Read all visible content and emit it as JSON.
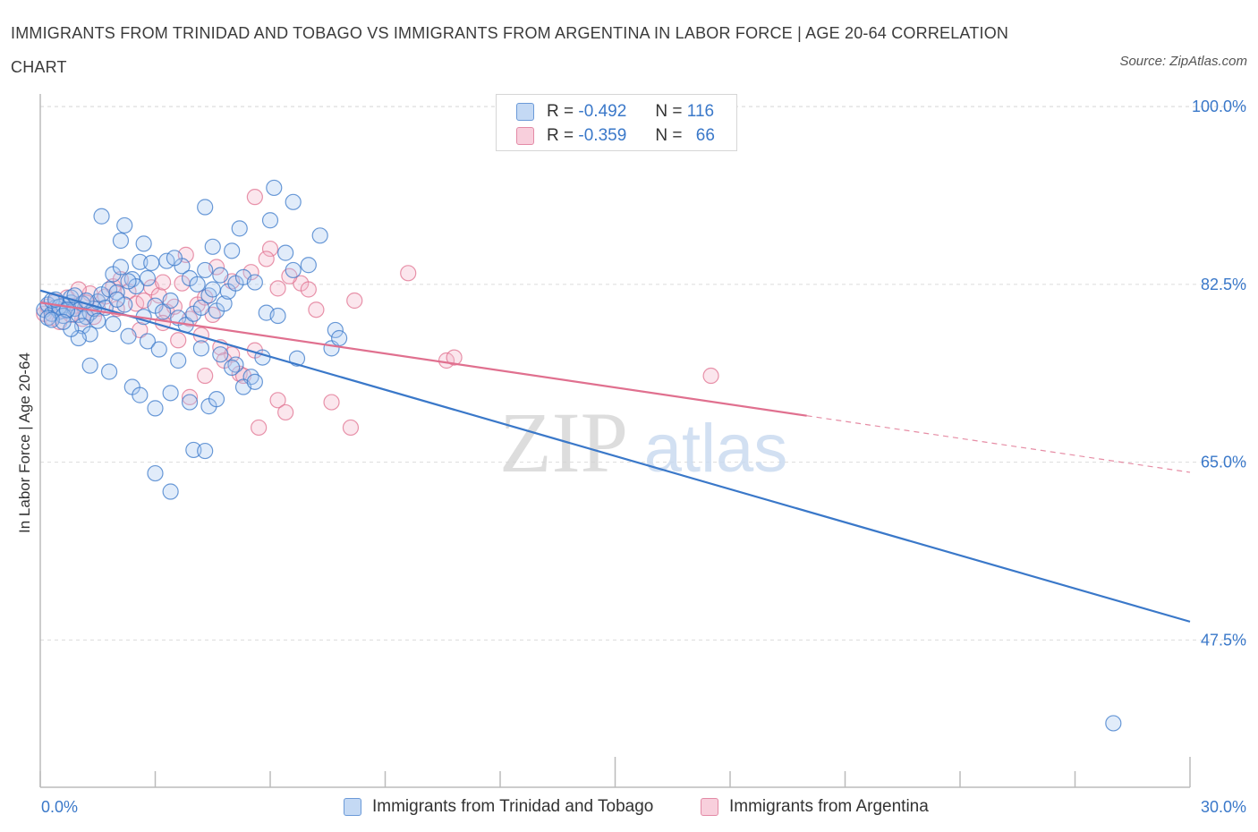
{
  "title": "IMMIGRANTS FROM TRINIDAD AND TOBAGO VS IMMIGRANTS FROM ARGENTINA IN LABOR FORCE | AGE 20-64 CORRELATION CHART",
  "source": "Source: ZipAtlas.com",
  "watermark": {
    "zip": "ZIP",
    "atlas": "atlas"
  },
  "colors": {
    "blue": "#3a78c9",
    "blue_fill": "#aac8f0",
    "pink": "#e0708f",
    "pink_fill": "#f4b8cb",
    "grid": "#d9d9d9",
    "axis_text": "#3a78c9"
  },
  "legend": {
    "rows": [
      {
        "r_label": "R =",
        "r_value": "-0.492",
        "n_label": "N =",
        "n_value": "116"
      },
      {
        "r_label": "R =",
        "r_value": "-0.359",
        "n_label": "N =",
        "n_value": "66"
      }
    ]
  },
  "chart_data": {
    "type": "scatter",
    "title": "IMMIGRANTS FROM TRINIDAD AND TOBAGO VS IMMIGRANTS FROM ARGENTINA IN LABOR FORCE | AGE 20-64 CORRELATION CHART",
    "xlabel": "",
    "ylabel": "In Labor Force | Age 20-64",
    "xlim": [
      0,
      30
    ],
    "ylim": [
      33,
      103
    ],
    "x_tick_labels": [
      "0.0%",
      "30.0%"
    ],
    "y_ticks": [
      100.0,
      82.5,
      65.0,
      47.5
    ],
    "y_tick_labels": [
      "100.0%",
      "82.5%",
      "65.0%",
      "47.5%"
    ],
    "grid": "horizontal dashed",
    "legend_position": "top-center",
    "series": [
      {
        "name": "Immigrants from Trinidad and Tobago",
        "color": "#3a78c9",
        "trend": {
          "x": [
            0,
            30
          ],
          "y": [
            81.9,
            49.3
          ],
          "dashed_from": null
        },
        "points": [
          [
            0.1,
            80.0
          ],
          [
            0.2,
            80.5
          ],
          [
            0.3,
            79.6
          ],
          [
            0.4,
            80.2
          ],
          [
            0.5,
            79.8
          ],
          [
            0.6,
            80.4
          ],
          [
            0.7,
            79.9
          ],
          [
            0.8,
            80.7
          ],
          [
            0.9,
            80.1
          ],
          [
            1.0,
            79.5
          ],
          [
            0.2,
            79.2
          ],
          [
            0.3,
            80.9
          ],
          [
            0.5,
            80.3
          ],
          [
            0.6,
            79.4
          ],
          [
            0.8,
            81.2
          ],
          [
            1.1,
            80.6
          ],
          [
            1.3,
            79.7
          ],
          [
            1.5,
            80.8
          ],
          [
            1.6,
            81.5
          ],
          [
            1.7,
            80.2
          ],
          [
            0.4,
            81.0
          ],
          [
            0.7,
            80.0
          ],
          [
            0.9,
            81.4
          ],
          [
            1.2,
            79.3
          ],
          [
            1.4,
            80.1
          ],
          [
            1.8,
            82.0
          ],
          [
            2.0,
            81.7
          ],
          [
            2.2,
            80.5
          ],
          [
            2.4,
            83.0
          ],
          [
            2.5,
            82.3
          ],
          [
            1.1,
            78.4
          ],
          [
            1.3,
            77.6
          ],
          [
            1.5,
            78.9
          ],
          [
            1.0,
            77.2
          ],
          [
            0.8,
            78.1
          ],
          [
            1.9,
            83.5
          ],
          [
            2.1,
            84.2
          ],
          [
            2.3,
            82.8
          ],
          [
            2.6,
            84.7
          ],
          [
            2.8,
            83.1
          ],
          [
            3.0,
            80.4
          ],
          [
            3.2,
            79.8
          ],
          [
            3.4,
            80.9
          ],
          [
            3.6,
            79.2
          ],
          [
            3.8,
            78.5
          ],
          [
            4.0,
            79.6
          ],
          [
            4.2,
            80.2
          ],
          [
            4.4,
            81.4
          ],
          [
            4.6,
            79.9
          ],
          [
            4.8,
            80.6
          ],
          [
            2.7,
            86.5
          ],
          [
            3.3,
            84.8
          ],
          [
            3.7,
            84.3
          ],
          [
            3.9,
            83.1
          ],
          [
            4.1,
            82.5
          ],
          [
            4.3,
            83.9
          ],
          [
            4.5,
            82.0
          ],
          [
            4.7,
            83.4
          ],
          [
            4.9,
            81.8
          ],
          [
            5.1,
            82.6
          ],
          [
            2.1,
            86.8
          ],
          [
            2.9,
            84.6
          ],
          [
            3.5,
            85.1
          ],
          [
            4.5,
            86.2
          ],
          [
            5.0,
            85.8
          ],
          [
            5.3,
            83.2
          ],
          [
            5.6,
            82.7
          ],
          [
            5.9,
            79.7
          ],
          [
            6.2,
            79.4
          ],
          [
            6.6,
            83.9
          ],
          [
            1.9,
            78.6
          ],
          [
            2.3,
            77.4
          ],
          [
            2.8,
            76.9
          ],
          [
            3.1,
            76.1
          ],
          [
            3.6,
            75.0
          ],
          [
            4.2,
            76.2
          ],
          [
            4.7,
            75.6
          ],
          [
            5.1,
            74.6
          ],
          [
            5.5,
            73.4
          ],
          [
            5.8,
            75.3
          ],
          [
            1.3,
            74.5
          ],
          [
            1.8,
            73.9
          ],
          [
            2.4,
            72.4
          ],
          [
            2.6,
            71.6
          ],
          [
            3.0,
            70.3
          ],
          [
            3.4,
            71.8
          ],
          [
            3.9,
            70.9
          ],
          [
            4.4,
            70.5
          ],
          [
            4.6,
            71.2
          ],
          [
            5.3,
            72.4
          ],
          [
            2.2,
            88.3
          ],
          [
            1.6,
            89.2
          ],
          [
            4.3,
            90.1
          ],
          [
            5.2,
            88.0
          ],
          [
            6.1,
            92.0
          ],
          [
            6.6,
            90.6
          ],
          [
            7.3,
            87.3
          ],
          [
            6.0,
            88.8
          ],
          [
            7.0,
            84.4
          ],
          [
            6.4,
            85.6
          ],
          [
            3.0,
            63.9
          ],
          [
            3.4,
            62.1
          ],
          [
            4.0,
            66.2
          ],
          [
            4.3,
            66.1
          ],
          [
            6.7,
            75.2
          ],
          [
            7.6,
            76.2
          ],
          [
            7.7,
            78.0
          ],
          [
            7.8,
            77.2
          ],
          [
            5.6,
            72.9
          ],
          [
            5.0,
            74.3
          ],
          [
            0.3,
            79.0
          ],
          [
            0.6,
            78.8
          ],
          [
            1.2,
            80.9
          ],
          [
            2.0,
            81.0
          ],
          [
            2.7,
            79.3
          ],
          [
            28.0,
            39.3
          ]
        ]
      },
      {
        "name": "Immigrants from Argentina",
        "color": "#e0708f",
        "trend": {
          "x": [
            0,
            30
          ],
          "y": [
            80.7,
            64.0
          ],
          "dashed_from": 20
        },
        "points": [
          [
            0.1,
            79.6
          ],
          [
            0.2,
            80.3
          ],
          [
            0.3,
            79.2
          ],
          [
            0.4,
            80.8
          ],
          [
            0.6,
            79.9
          ],
          [
            0.7,
            81.2
          ],
          [
            0.9,
            80.4
          ],
          [
            1.1,
            79.1
          ],
          [
            1.3,
            81.6
          ],
          [
            1.5,
            80.1
          ],
          [
            0.5,
            78.8
          ],
          [
            0.8,
            79.5
          ],
          [
            1.0,
            82.0
          ],
          [
            1.2,
            80.7
          ],
          [
            1.4,
            79.3
          ],
          [
            1.7,
            81.3
          ],
          [
            1.9,
            82.3
          ],
          [
            2.1,
            83.0
          ],
          [
            2.3,
            81.8
          ],
          [
            2.5,
            80.6
          ],
          [
            2.7,
            80.9
          ],
          [
            2.9,
            82.2
          ],
          [
            3.1,
            81.4
          ],
          [
            3.3,
            79.8
          ],
          [
            3.5,
            80.3
          ],
          [
            3.7,
            82.6
          ],
          [
            3.9,
            79.1
          ],
          [
            4.1,
            80.5
          ],
          [
            4.3,
            81.2
          ],
          [
            4.5,
            79.5
          ],
          [
            2.0,
            80.1
          ],
          [
            2.6,
            78.0
          ],
          [
            3.2,
            78.7
          ],
          [
            3.6,
            77.0
          ],
          [
            4.2,
            77.5
          ],
          [
            4.7,
            76.3
          ],
          [
            5.0,
            75.6
          ],
          [
            4.8,
            75.0
          ],
          [
            5.2,
            73.7
          ],
          [
            5.6,
            76.0
          ],
          [
            3.2,
            82.7
          ],
          [
            3.8,
            85.4
          ],
          [
            4.6,
            84.2
          ],
          [
            5.0,
            82.8
          ],
          [
            5.5,
            83.7
          ],
          [
            6.0,
            86.0
          ],
          [
            5.9,
            85.0
          ],
          [
            6.2,
            82.1
          ],
          [
            6.8,
            82.6
          ],
          [
            7.0,
            82.0
          ],
          [
            5.6,
            91.1
          ],
          [
            6.5,
            83.3
          ],
          [
            7.2,
            80.0
          ],
          [
            3.9,
            71.4
          ],
          [
            4.3,
            73.5
          ],
          [
            5.3,
            73.5
          ],
          [
            5.7,
            68.4
          ],
          [
            6.2,
            71.1
          ],
          [
            6.4,
            69.9
          ],
          [
            7.6,
            70.9
          ],
          [
            8.2,
            80.9
          ],
          [
            8.1,
            68.4
          ],
          [
            9.6,
            83.6
          ],
          [
            10.6,
            75.0
          ],
          [
            10.8,
            75.3
          ],
          [
            17.5,
            73.5
          ]
        ]
      }
    ]
  },
  "bottom_legend": [
    {
      "label": "Immigrants from Trinidad and Tobago"
    },
    {
      "label": "Immigrants from Argentina"
    }
  ],
  "x_axis": {
    "left_label": "0.0%",
    "right_label": "30.0%"
  }
}
